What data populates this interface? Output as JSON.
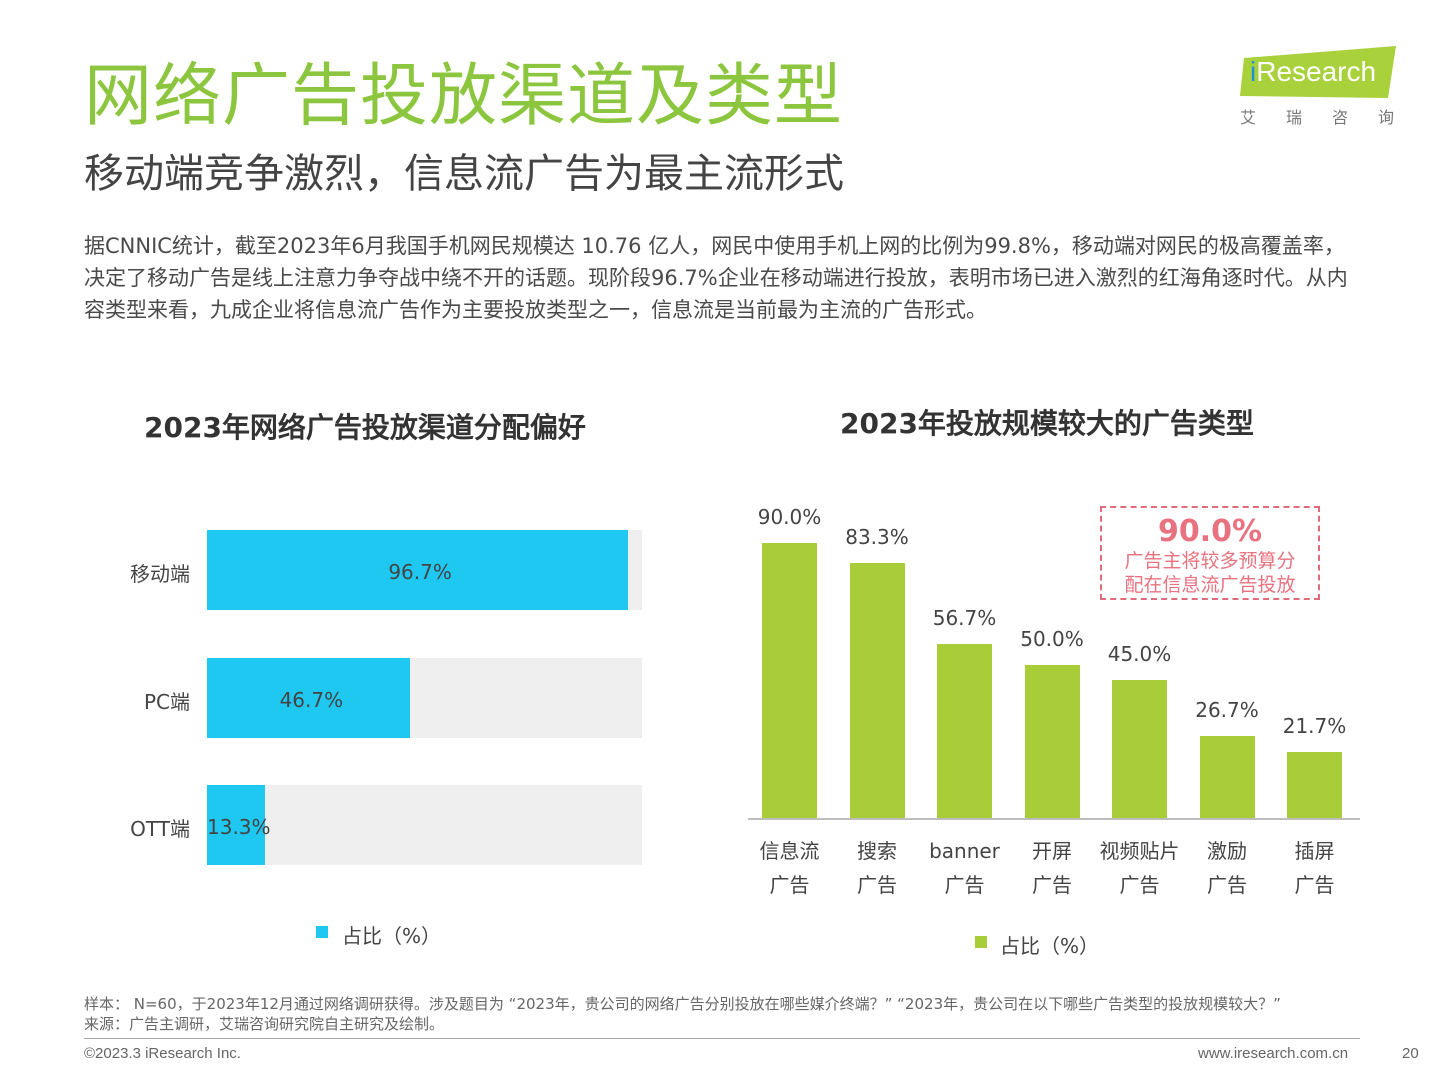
{
  "header": {
    "title": "网络广告投放渠道及类型",
    "subtitle": "移动端竞争激烈，信息流广告为最主流形式",
    "intro": "据CNNIC统计，截至2023年6月我国手机网民规模达 10.76 亿人，网民中使用手机上网的比例为99.8%，移动端对网民的极高覆盖率，决定了移动广告是线上注意力争夺战中绕不开的话题。现阶段96.7%企业在移动端进行投放，表明市场已进入激烈的红海角逐时代。从内容类型来看，九成企业将信息流广告作为主要投放类型之一，信息流是当前最为主流的广告形式。"
  },
  "logo": {
    "i": "i",
    "name": "Research",
    "cn": "艾瑞咨询"
  },
  "colors": {
    "title_green": "#8cc63f",
    "cyan_bar": "#1fc8f0",
    "green_bar": "#a8cd38",
    "callout_red": "#e8727f"
  },
  "chart_data": [
    {
      "type": "bar",
      "orientation": "horizontal",
      "title": "2023年网络广告投放渠道分配偏好",
      "categories": [
        "移动端",
        "PC端",
        "OTT端"
      ],
      "values": [
        96.7,
        46.7,
        13.3
      ],
      "value_labels": [
        "96.7%",
        "46.7%",
        "13.3%"
      ],
      "legend": "占比（%）",
      "xlim": [
        0,
        100
      ],
      "grid": false
    },
    {
      "type": "bar",
      "orientation": "vertical",
      "title": "2023年投放规模较大的广告类型",
      "categories": [
        {
          "line1": "信息流",
          "line2": "广告"
        },
        {
          "line1": "搜索",
          "line2": "广告"
        },
        {
          "line1": "banner",
          "line2": "广告"
        },
        {
          "line1": "开屏",
          "line2": "广告"
        },
        {
          "line1": "视频贴片",
          "line2": "广告"
        },
        {
          "line1": "激励",
          "line2": "广告"
        },
        {
          "line1": "插屏",
          "line2": "广告"
        }
      ],
      "values": [
        90.0,
        83.3,
        56.7,
        50.0,
        45.0,
        26.7,
        21.7
      ],
      "value_labels": [
        "90.0%",
        "83.3%",
        "56.7%",
        "50.0%",
        "45.0%",
        "26.7%",
        "21.7%"
      ],
      "legend": "占比（%）",
      "ylim": [
        0,
        100
      ],
      "grid": false,
      "annotation": {
        "value": "90.0%",
        "line1": "广告主将较多预算分",
        "line2": "配在信息流广告投放"
      }
    }
  ],
  "footer": {
    "sample": "样本： N=60，于2023年12月通过网络调研获得。涉及题目为 “2023年，贵公司的网络广告分别投放在哪些媒介终端？”   “2023年，贵公司在以下哪些广告类型的投放规模较大？”",
    "source": "来源：广告主调研，艾瑞咨询研究院自主研究及绘制。",
    "copyright": "©2023.3 iResearch Inc.",
    "website": "www.iresearch.com.cn",
    "page": "20"
  }
}
